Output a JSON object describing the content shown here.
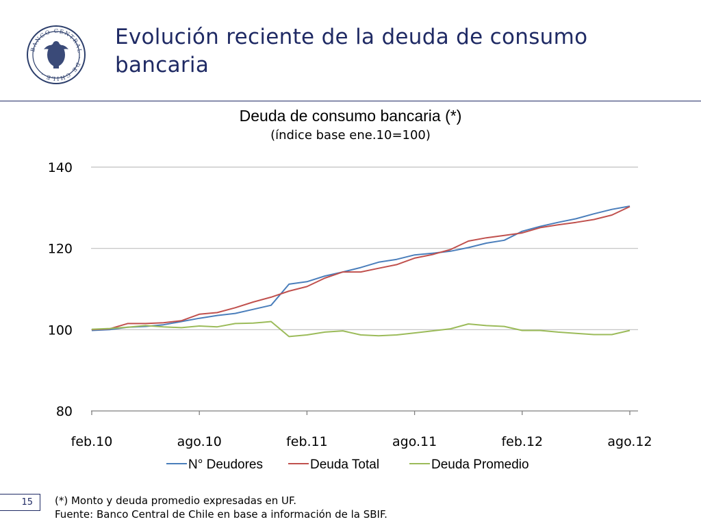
{
  "header": {
    "title": "Evolución reciente de la deuda de consumo bancaria",
    "logo_text": "BANCO CENTRAL DE CHILE",
    "accent_color": "#1f2a64"
  },
  "chart_data": {
    "type": "line",
    "title": "Deuda de consumo bancaria (*)",
    "subtitle": "(índice base ene.10=100)",
    "ylim": [
      80,
      140
    ],
    "yticks": [
      "80",
      "100",
      "120",
      "140"
    ],
    "xticks": [
      "feb.10",
      "ago.10",
      "feb.11",
      "ago.11",
      "feb.12",
      "ago.12"
    ],
    "x": [
      "feb.10",
      "mar.10",
      "abr.10",
      "may.10",
      "jun.10",
      "jul.10",
      "ago.10",
      "sep.10",
      "oct.10",
      "nov.10",
      "dic.10",
      "ene.11",
      "feb.11",
      "mar.11",
      "abr.11",
      "may.11",
      "jun.11",
      "jul.11",
      "ago.11",
      "sep.11",
      "oct.11",
      "nov.11",
      "dic.11",
      "ene.12",
      "feb.12",
      "mar.12",
      "abr.12",
      "may.12",
      "jun.12",
      "jul.12",
      "ago.12"
    ],
    "grid": true,
    "legend_position": "bottom",
    "series": [
      {
        "name": "N° Deudores",
        "color": "#4a7ebb",
        "values": [
          99.8,
          100.0,
          100.6,
          100.8,
          101.2,
          102.0,
          102.8,
          103.5,
          104.0,
          105.0,
          106.0,
          111.2,
          111.8,
          113.2,
          114.2,
          115.3,
          116.6,
          117.3,
          118.4,
          118.8,
          119.3,
          120.2,
          121.3,
          122.0,
          124.2,
          125.4,
          126.4,
          127.3,
          128.5,
          129.6,
          130.4
        ]
      },
      {
        "name": "Deuda Total",
        "color": "#c0504d",
        "values": [
          100.0,
          100.2,
          101.5,
          101.5,
          101.7,
          102.2,
          103.8,
          104.2,
          105.4,
          106.8,
          108.0,
          109.5,
          110.6,
          112.7,
          114.2,
          114.2,
          115.1,
          116.0,
          117.6,
          118.5,
          119.7,
          121.8,
          122.6,
          123.2,
          123.8,
          125.1,
          125.8,
          126.4,
          127.1,
          128.2,
          130.3
        ]
      },
      {
        "name": "Deuda Promedio",
        "color": "#9bbb59",
        "values": [
          100.1,
          100.3,
          100.6,
          101.0,
          100.7,
          100.5,
          100.9,
          100.7,
          101.5,
          101.6,
          102.0,
          98.3,
          98.7,
          99.4,
          99.7,
          98.7,
          98.5,
          98.7,
          99.2,
          99.7,
          100.2,
          101.4,
          101.0,
          100.8,
          99.8,
          99.8,
          99.4,
          99.1,
          98.8,
          98.8,
          99.8
        ]
      }
    ]
  },
  "footer": {
    "page_number": "15",
    "note": "(*) Monto y deuda promedio expresadas en UF.",
    "source": "Fuente: Banco Central de Chile en base a información de la SBIF."
  }
}
